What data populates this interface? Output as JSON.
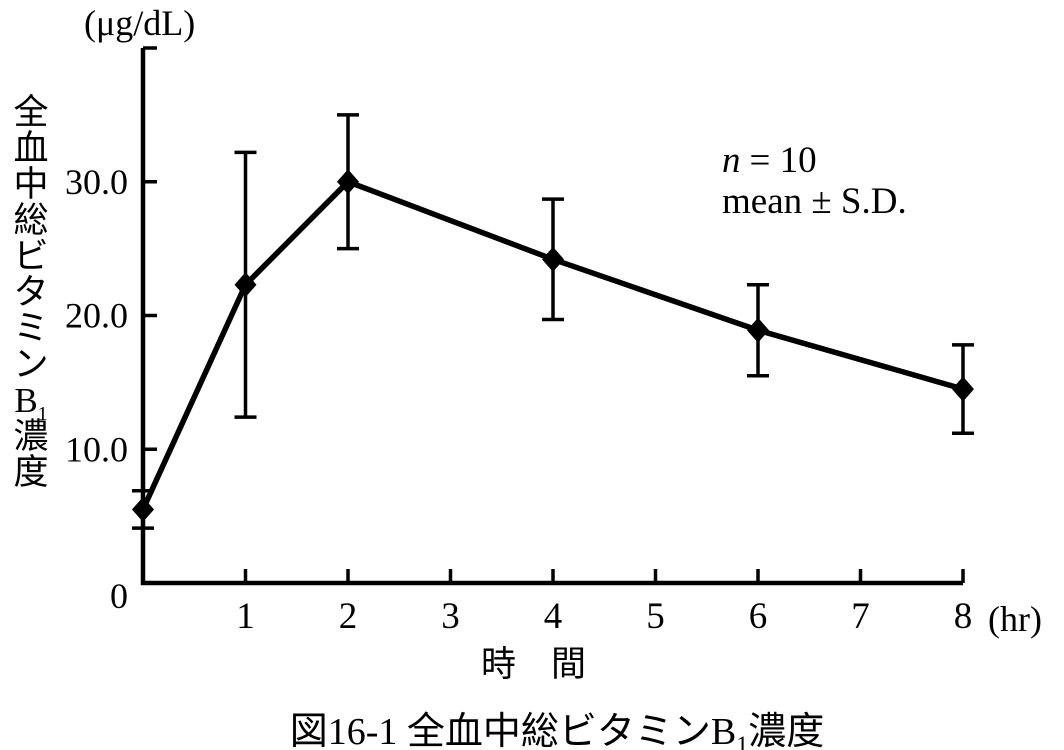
{
  "figure": {
    "caption": {
      "prefix": "図16-1 全血中総ビタミンB",
      "sub": "1",
      "suffix": "濃度"
    }
  },
  "chart_data": {
    "type": "line",
    "title": "",
    "xlabel": "時　間",
    "x_unit": "(hr)",
    "ylabel": "全血中総ビタミンB1濃度",
    "ylabel_stack": [
      "全",
      "血",
      "中",
      "総",
      "ビ",
      "タ",
      "ミ",
      "ン",
      {
        "base": "B",
        "sub": "1"
      },
      "濃",
      "度"
    ],
    "y_unit": "(μg/dL)",
    "xlim": [
      0,
      8
    ],
    "ylim": [
      0,
      40
    ],
    "x_ticks": [
      {
        "v": 1,
        "label": "1"
      },
      {
        "v": 2,
        "label": "2"
      },
      {
        "v": 3,
        "label": "3"
      },
      {
        "v": 4,
        "label": "4"
      },
      {
        "v": 5,
        "label": "5"
      },
      {
        "v": 6,
        "label": "6"
      },
      {
        "v": 7,
        "label": "7"
      },
      {
        "v": 8,
        "label": "8"
      }
    ],
    "y_ticks": [
      {
        "v": 0,
        "label": "0"
      },
      {
        "v": 10,
        "label": "10.0"
      },
      {
        "v": 20,
        "label": "20.0"
      },
      {
        "v": 30,
        "label": "30.0"
      },
      {
        "v": 40,
        "label": ""
      }
    ],
    "grid": false,
    "annotation": {
      "n_var": "n",
      "n_value": "= 10",
      "mean_sd": "mean ± S.D."
    },
    "series": [
      {
        "name": "全血中総ビタミンB1濃度 (mean ± S.D.)",
        "x": [
          0,
          1,
          2,
          4,
          6,
          8
        ],
        "values": [
          5.5,
          22.3,
          30.0,
          24.2,
          18.9,
          14.5
        ],
        "sd": [
          1.4,
          9.9,
          5.0,
          4.5,
          3.4,
          3.3
        ],
        "marker": "diamond",
        "color": "#000000"
      }
    ]
  }
}
